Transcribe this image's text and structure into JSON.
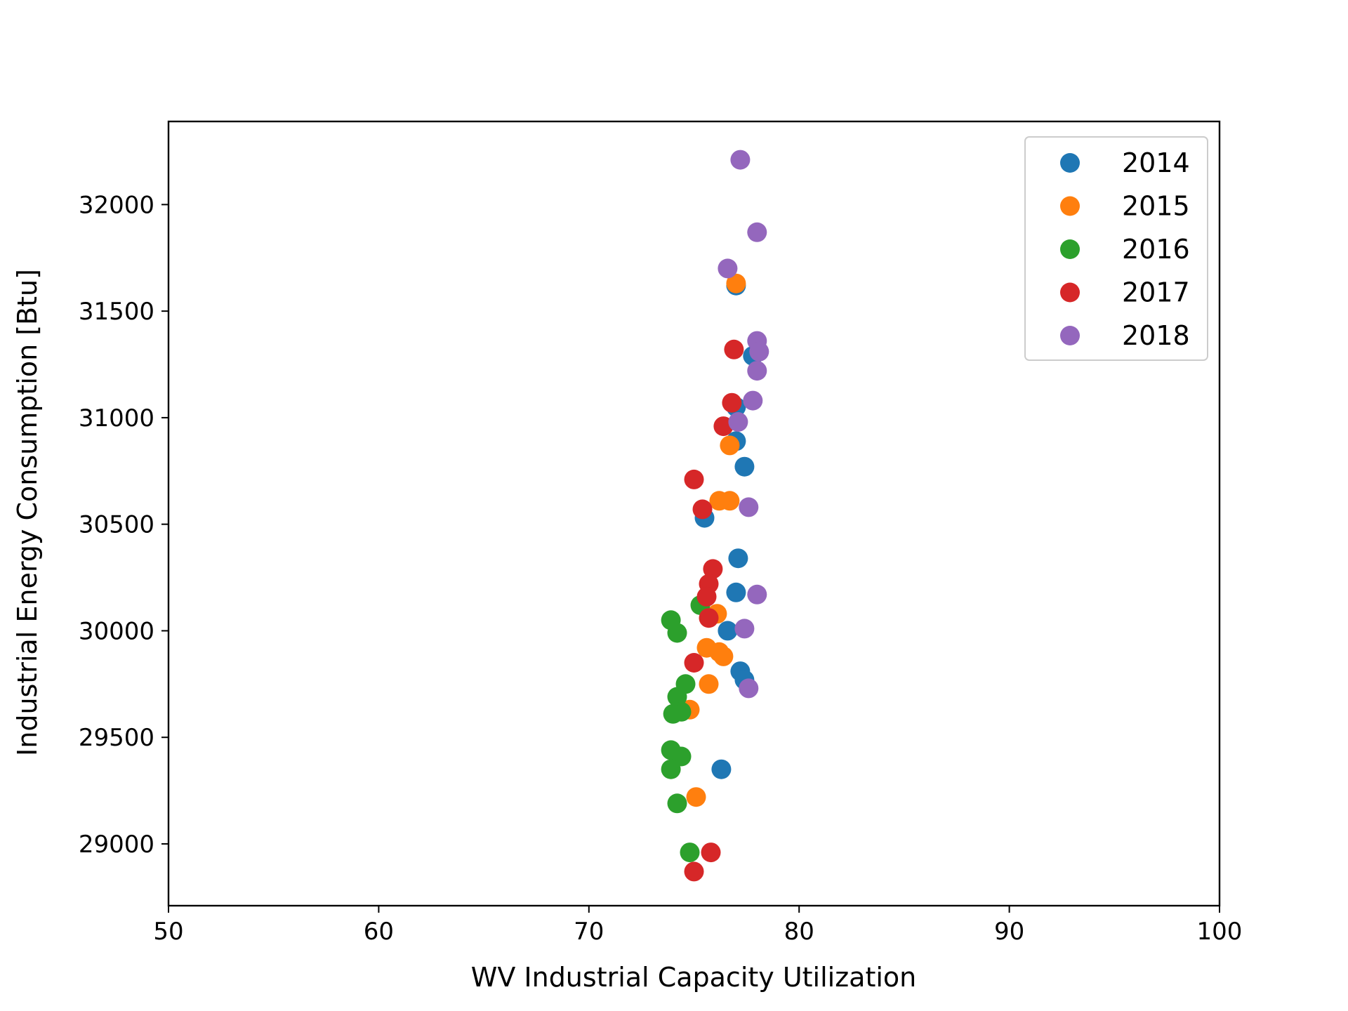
{
  "chart_data": {
    "type": "scatter",
    "xlabel": "WV Industrial Capacity Utilization",
    "ylabel": "Industrial Energy Consumption [Btu]",
    "xlim": [
      50,
      100
    ],
    "ylim": [
      28710,
      32390
    ],
    "xticks": [
      50,
      60,
      70,
      80,
      90,
      100
    ],
    "yticks": [
      29000,
      29500,
      30000,
      30500,
      31000,
      31500,
      32000
    ],
    "grid": false,
    "legend_position": "top-right",
    "series": [
      {
        "name": "2014",
        "color": "#1f77b4",
        "points": [
          [
            77.0,
            31620
          ],
          [
            77.8,
            31290
          ],
          [
            77.0,
            31050
          ],
          [
            77.0,
            30890
          ],
          [
            77.4,
            30770
          ],
          [
            75.5,
            30530
          ],
          [
            77.1,
            30340
          ],
          [
            77.0,
            30180
          ],
          [
            76.6,
            30000
          ],
          [
            77.2,
            29810
          ],
          [
            77.4,
            29770
          ],
          [
            76.3,
            29350
          ]
        ]
      },
      {
        "name": "2015",
        "color": "#ff7f0e",
        "points": [
          [
            77.0,
            31630
          ],
          [
            76.7,
            30870
          ],
          [
            76.7,
            30610
          ],
          [
            76.2,
            30610
          ],
          [
            76.1,
            30080
          ],
          [
            75.6,
            29920
          ],
          [
            76.2,
            29900
          ],
          [
            76.4,
            29880
          ],
          [
            75.7,
            29750
          ],
          [
            74.8,
            29630
          ],
          [
            75.1,
            29220
          ]
        ]
      },
      {
        "name": "2016",
        "color": "#2ca02c",
        "points": [
          [
            75.3,
            30120
          ],
          [
            73.9,
            30050
          ],
          [
            74.2,
            29990
          ],
          [
            74.6,
            29750
          ],
          [
            74.2,
            29690
          ],
          [
            74.4,
            29620
          ],
          [
            74.0,
            29610
          ],
          [
            73.9,
            29440
          ],
          [
            74.4,
            29410
          ],
          [
            73.9,
            29350
          ],
          [
            74.2,
            29190
          ],
          [
            74.8,
            28960
          ]
        ]
      },
      {
        "name": "2017",
        "color": "#d62728",
        "points": [
          [
            76.9,
            31320
          ],
          [
            76.8,
            31070
          ],
          [
            76.4,
            30960
          ],
          [
            75.0,
            30710
          ],
          [
            75.4,
            30570
          ],
          [
            75.9,
            30290
          ],
          [
            75.7,
            30220
          ],
          [
            75.6,
            30160
          ],
          [
            75.7,
            30060
          ],
          [
            75.0,
            29850
          ],
          [
            75.8,
            28960
          ],
          [
            75.0,
            28870
          ]
        ]
      },
      {
        "name": "2018",
        "color": "#9467bd",
        "points": [
          [
            77.2,
            32210
          ],
          [
            78.0,
            31870
          ],
          [
            76.6,
            31700
          ],
          [
            78.0,
            31360
          ],
          [
            78.1,
            31310
          ],
          [
            78.0,
            31220
          ],
          [
            77.8,
            31080
          ],
          [
            77.1,
            30980
          ],
          [
            77.6,
            30580
          ],
          [
            78.0,
            30170
          ],
          [
            77.4,
            30010
          ],
          [
            77.6,
            29730
          ]
        ]
      }
    ]
  }
}
